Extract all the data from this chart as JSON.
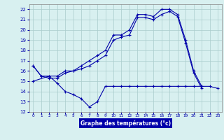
{
  "title": "Graphe des températures (°c)",
  "bg_color": "#d8f0f0",
  "grid_color": "#aacccc",
  "line_color": "#0000aa",
  "ylim": [
    12,
    22.5
  ],
  "xlim": [
    -0.5,
    23.5
  ],
  "yticks": [
    12,
    13,
    14,
    15,
    16,
    17,
    18,
    19,
    20,
    21,
    22
  ],
  "xticks": [
    0,
    1,
    2,
    3,
    4,
    5,
    6,
    7,
    8,
    9,
    10,
    11,
    12,
    13,
    14,
    15,
    16,
    17,
    18,
    19,
    20,
    21,
    22,
    23
  ],
  "line1_x": [
    0,
    1,
    2,
    3,
    4,
    5,
    6,
    7,
    8,
    9,
    10,
    11,
    12,
    13,
    14,
    15,
    16,
    17,
    18,
    19,
    20,
    21
  ],
  "line1_y": [
    16.5,
    15.5,
    15.5,
    15.5,
    16.0,
    16.0,
    16.5,
    17.0,
    17.5,
    18.0,
    19.5,
    19.5,
    20.0,
    21.5,
    21.5,
    21.3,
    22.0,
    22.0,
    21.5,
    19.0,
    16.0,
    14.5
  ],
  "line2_x": [
    0,
    1,
    2,
    3,
    4,
    5,
    6,
    7,
    8,
    9,
    10,
    11,
    12,
    13,
    14,
    15,
    16,
    17,
    18,
    19,
    20,
    21
  ],
  "line2_y": [
    16.5,
    15.5,
    15.3,
    15.3,
    15.8,
    16.0,
    16.2,
    16.5,
    17.0,
    17.5,
    19.0,
    19.3,
    19.5,
    21.2,
    21.2,
    21.0,
    21.5,
    21.8,
    21.3,
    18.7,
    15.8,
    14.3
  ],
  "line3_x": [
    0,
    2,
    3,
    4,
    5,
    6,
    7,
    8,
    9,
    10,
    11,
    12,
    13,
    14,
    15,
    16,
    17,
    18,
    19,
    20,
    21,
    22,
    23
  ],
  "line3_y": [
    15.0,
    15.5,
    14.8,
    14.0,
    13.7,
    13.3,
    12.5,
    13.0,
    14.5,
    14.5,
    14.5,
    14.5,
    14.5,
    14.5,
    14.5,
    14.5,
    14.5,
    14.5,
    14.5,
    14.5,
    14.5,
    14.5,
    14.3
  ]
}
